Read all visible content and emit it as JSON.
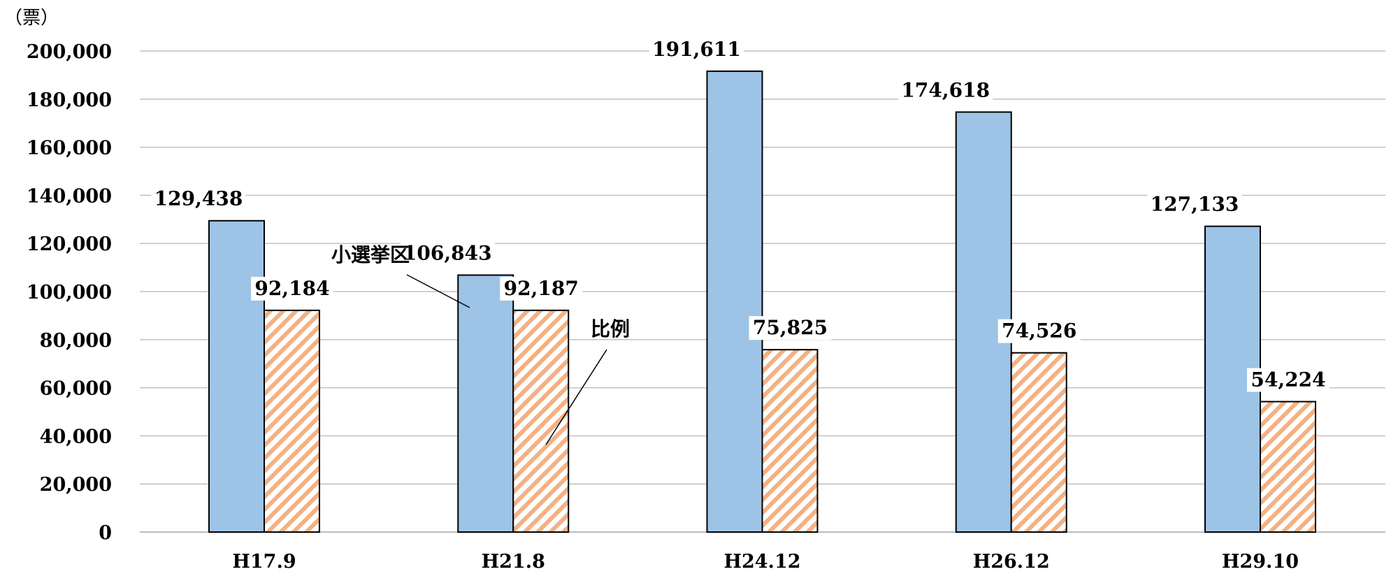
{
  "chart_data": {
    "type": "bar",
    "unit_label": "（票）",
    "categories": [
      "H17.9",
      "H21.8",
      "H24.12",
      "H26.12",
      "H29.10"
    ],
    "ylim": [
      0,
      200000
    ],
    "yticks": [
      0,
      20000,
      40000,
      60000,
      80000,
      100000,
      120000,
      140000,
      160000,
      180000,
      200000
    ],
    "ytick_labels": [
      "0",
      "20,000",
      "40,000",
      "60,000",
      "80,000",
      "100,000",
      "120,000",
      "140,000",
      "160,000",
      "180,000",
      "200,000"
    ],
    "grid": true,
    "series": [
      {
        "name": "小選挙区",
        "values": [
          129438,
          106843,
          191611,
          174618,
          127133
        ],
        "value_labels": [
          "129,438",
          "106,843",
          "191,611",
          "174,618",
          "127,133"
        ],
        "color": "#9DC3E6",
        "pattern": "solid"
      },
      {
        "name": "比例",
        "values": [
          92184,
          92187,
          75825,
          74526,
          54224
        ],
        "value_labels": [
          "92,184",
          "92,187",
          "75,825",
          "74,526",
          "54,224"
        ],
        "color": "#F4B183",
        "pattern": "diagonal-hatch"
      }
    ],
    "colors": {
      "edge": "#000000",
      "grid": "#c0c0c0",
      "hatch_bg": "#ffffff"
    }
  }
}
